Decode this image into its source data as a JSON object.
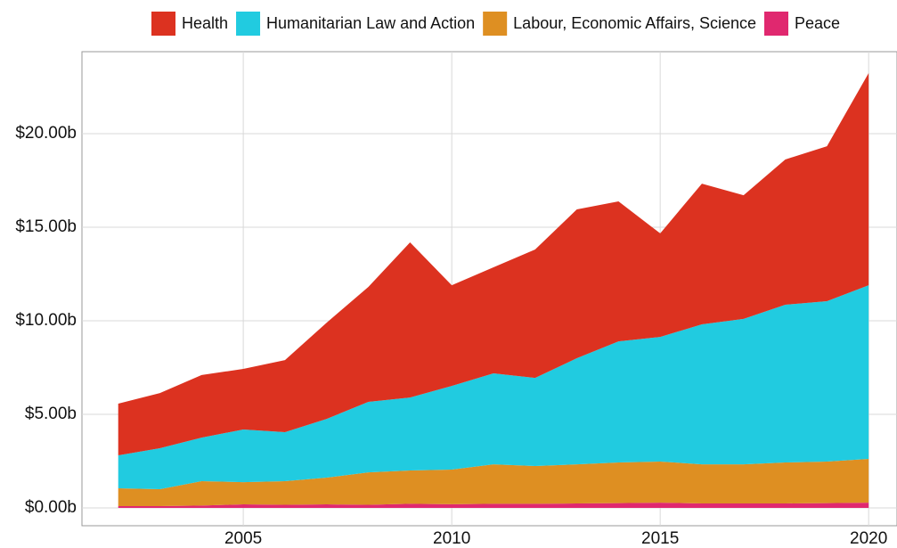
{
  "chart_data": {
    "type": "stacked_area",
    "x": [
      2002,
      2003,
      2004,
      2005,
      2006,
      2007,
      2008,
      2009,
      2010,
      2011,
      2012,
      2013,
      2014,
      2015,
      2016,
      2017,
      2018,
      2019,
      2020
    ],
    "series": [
      {
        "name": "Peace",
        "color": "#e0286f",
        "values": [
          0.1,
          0.1,
          0.13,
          0.19,
          0.17,
          0.19,
          0.17,
          0.22,
          0.2,
          0.22,
          0.22,
          0.24,
          0.26,
          0.28,
          0.24,
          0.24,
          0.24,
          0.26,
          0.28
        ]
      },
      {
        "name": "Labour, Economic Affairs, Science",
        "color": "#de8f22",
        "values": [
          0.95,
          0.9,
          1.3,
          1.19,
          1.26,
          1.43,
          1.73,
          1.78,
          1.85,
          2.11,
          2.02,
          2.09,
          2.17,
          2.2,
          2.09,
          2.09,
          2.19,
          2.22,
          2.34
        ]
      },
      {
        "name": "Humanitarian Law and Action",
        "color": "#21cbe0",
        "values": [
          1.76,
          2.19,
          2.33,
          2.81,
          2.62,
          3.14,
          3.77,
          3.9,
          4.47,
          4.86,
          4.71,
          5.67,
          6.47,
          6.66,
          7.48,
          7.77,
          8.43,
          8.57,
          9.28
        ]
      },
      {
        "name": "Health",
        "color": "#dc3220",
        "values": [
          2.76,
          2.95,
          3.34,
          3.24,
          3.85,
          5.14,
          6.14,
          8.29,
          5.38,
          5.67,
          6.86,
          7.95,
          7.48,
          5.53,
          7.52,
          6.61,
          7.76,
          8.28,
          11.34
        ]
      }
    ],
    "legend_order": [
      3,
      2,
      1,
      0
    ],
    "xlim": [
      2001.13,
      2020.68
    ],
    "xticks": [
      2005,
      2010,
      2015,
      2020
    ],
    "ylim": [
      -0.95,
      24.38
    ],
    "yticks": [
      {
        "value": 0,
        "label": "$0.00b"
      },
      {
        "value": 5,
        "label": "$5.00b"
      },
      {
        "value": 10,
        "label": "$10.00b"
      },
      {
        "value": 15,
        "label": "$15.00b"
      },
      {
        "value": 20,
        "label": "$20.00b"
      }
    ],
    "grid": true
  }
}
